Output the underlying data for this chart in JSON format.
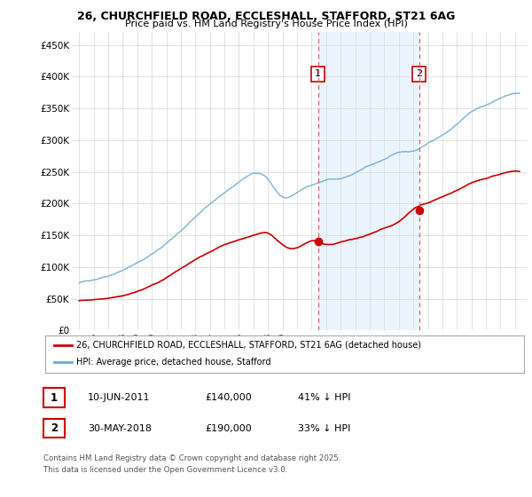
{
  "title_line1": "26, CHURCHFIELD ROAD, ECCLESHALL, STAFFORD, ST21 6AG",
  "title_line2": "Price paid vs. HM Land Registry's House Price Index (HPI)",
  "ylim": [
    0,
    470000
  ],
  "yticks": [
    0,
    50000,
    100000,
    150000,
    200000,
    250000,
    300000,
    350000,
    400000,
    450000
  ],
  "ytick_labels": [
    "£0",
    "£50K",
    "£100K",
    "£150K",
    "£200K",
    "£250K",
    "£300K",
    "£350K",
    "£400K",
    "£450K"
  ],
  "hpi_color": "#6eaad4",
  "price_color": "#cc0000",
  "marker1_date_x": 2011.44,
  "marker1_price": 140000,
  "marker2_date_x": 2018.41,
  "marker2_price": 190000,
  "legend_property": "26, CHURCHFIELD ROAD, ECCLESHALL, STAFFORD, ST21 6AG (detached house)",
  "legend_hpi": "HPI: Average price, detached house, Stafford",
  "footnote_line1": "Contains HM Land Registry data © Crown copyright and database right 2025.",
  "footnote_line2": "This data is licensed under the Open Government Licence v3.0.",
  "table_row1": [
    "1",
    "10-JUN-2011",
    "£140,000",
    "41% ↓ HPI"
  ],
  "table_row2": [
    "2",
    "30-MAY-2018",
    "£190,000",
    "33% ↓ HPI"
  ],
  "background_color": "#ffffff",
  "grid_color": "#dddddd",
  "vline_color": "#e06060",
  "highlight_color": "#ddeeff",
  "xmin": 1994.5,
  "xmax": 2025.8,
  "hpi_waypoints_x": [
    1995,
    1996,
    1997,
    1998,
    1999,
    2000,
    2001,
    2002,
    2003,
    2004,
    2005,
    2006,
    2007,
    2008,
    2009,
    2010,
    2011,
    2012,
    2013,
    2014,
    2015,
    2016,
    2017,
    2018,
    2019,
    2020,
    2021,
    2022,
    2023,
    2024,
    2025.3
  ],
  "hpi_waypoints_y": [
    75000,
    80000,
    86000,
    95000,
    108000,
    122000,
    138000,
    158000,
    180000,
    200000,
    218000,
    235000,
    248000,
    238000,
    210000,
    218000,
    230000,
    238000,
    242000,
    252000,
    262000,
    272000,
    283000,
    285000,
    296000,
    308000,
    325000,
    345000,
    355000,
    365000,
    372000
  ],
  "prop_waypoints_x": [
    1995,
    1996,
    1997,
    1998,
    1999,
    2000,
    2001,
    2002,
    2003,
    2004,
    2005,
    2006,
    2007,
    2008,
    2009,
    2010,
    2011,
    2012,
    2013,
    2014,
    2015,
    2016,
    2017,
    2018,
    2019,
    2020,
    2021,
    2022,
    2023,
    2024,
    2025.3
  ],
  "prop_waypoints_y": [
    47000,
    49000,
    52000,
    56000,
    62000,
    72000,
    84000,
    98000,
    112000,
    125000,
    136000,
    143000,
    150000,
    153000,
    135000,
    130000,
    140000,
    135000,
    138000,
    143000,
    150000,
    160000,
    170000,
    190000,
    200000,
    210000,
    220000,
    232000,
    240000,
    247000,
    250000
  ]
}
